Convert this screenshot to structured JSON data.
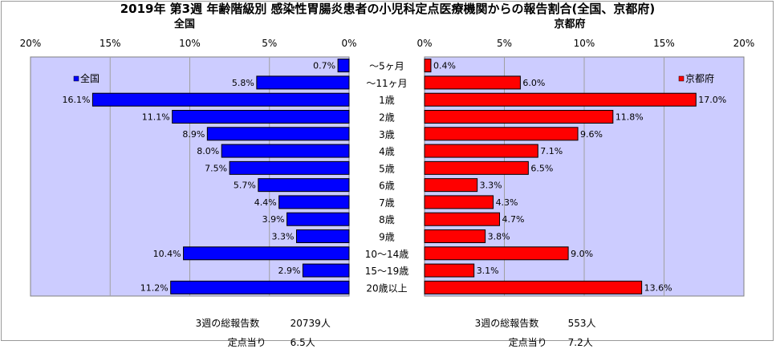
{
  "title": "2019年 第3週 年齢階級別 感染性胃腸炎患者の小児科定点医療機関からの報告割合(全国、京都府)",
  "colors": {
    "national": "#0000ff",
    "kyoto": "#ff0000",
    "plot_bg": "#ccccff",
    "grid": "#a0a0a0"
  },
  "chart_data": [
    {
      "type": "bar",
      "orientation": "horizontal-reversed",
      "title": "全国",
      "legend": "全国",
      "legend_position": "top-left",
      "categories": [
        "～5ヶ月",
        "～11ヶ月",
        "1歳",
        "2歳",
        "3歳",
        "4歳",
        "5歳",
        "6歳",
        "7歳",
        "8歳",
        "9歳",
        "10～14歳",
        "15～19歳",
        "20歳以上"
      ],
      "values": [
        0.7,
        5.8,
        16.1,
        11.1,
        8.9,
        8.0,
        7.5,
        5.7,
        4.4,
        3.9,
        3.3,
        10.4,
        2.9,
        11.2
      ],
      "value_labels": [
        "0.7%",
        "5.8%",
        "16.1%",
        "11.1%",
        "8.9%",
        "8.0%",
        "7.5%",
        "5.7%",
        "4.4%",
        "3.9%",
        "3.3%",
        "10.4%",
        "2.9%",
        "11.2%"
      ],
      "xlim": [
        0,
        20
      ],
      "ticks": [
        "0%",
        "5%",
        "10%",
        "15%",
        "20%"
      ],
      "grid": true
    },
    {
      "type": "bar",
      "orientation": "horizontal",
      "title": "京都府",
      "legend": "京都府",
      "legend_position": "top-right",
      "categories": [
        "～5ヶ月",
        "～11ヶ月",
        "1歳",
        "2歳",
        "3歳",
        "4歳",
        "5歳",
        "6歳",
        "7歳",
        "8歳",
        "9歳",
        "10～14歳",
        "15～19歳",
        "20歳以上"
      ],
      "values": [
        0.4,
        6.0,
        17.0,
        11.8,
        9.6,
        7.1,
        6.5,
        3.3,
        4.3,
        4.7,
        3.8,
        9.0,
        3.1,
        13.6
      ],
      "value_labels": [
        "0.4%",
        "6.0%",
        "17.0%",
        "11.8%",
        "9.6%",
        "7.1%",
        "6.5%",
        "3.3%",
        "4.3%",
        "4.7%",
        "3.8%",
        "9.0%",
        "3.1%",
        "13.6%"
      ],
      "xlim": [
        0,
        20
      ],
      "ticks": [
        "0%",
        "5%",
        "10%",
        "15%",
        "20%"
      ],
      "grid": true
    }
  ],
  "footer": {
    "national_total_label": "3週の総報告数",
    "national_total_value": "20739人",
    "national_per_label": "定点当り",
    "national_per_value": "6.5人",
    "kyoto_total_label": "3週の総報告数",
    "kyoto_total_value": "553人",
    "kyoto_per_label": "定点当り",
    "kyoto_per_value": "7.2人"
  }
}
